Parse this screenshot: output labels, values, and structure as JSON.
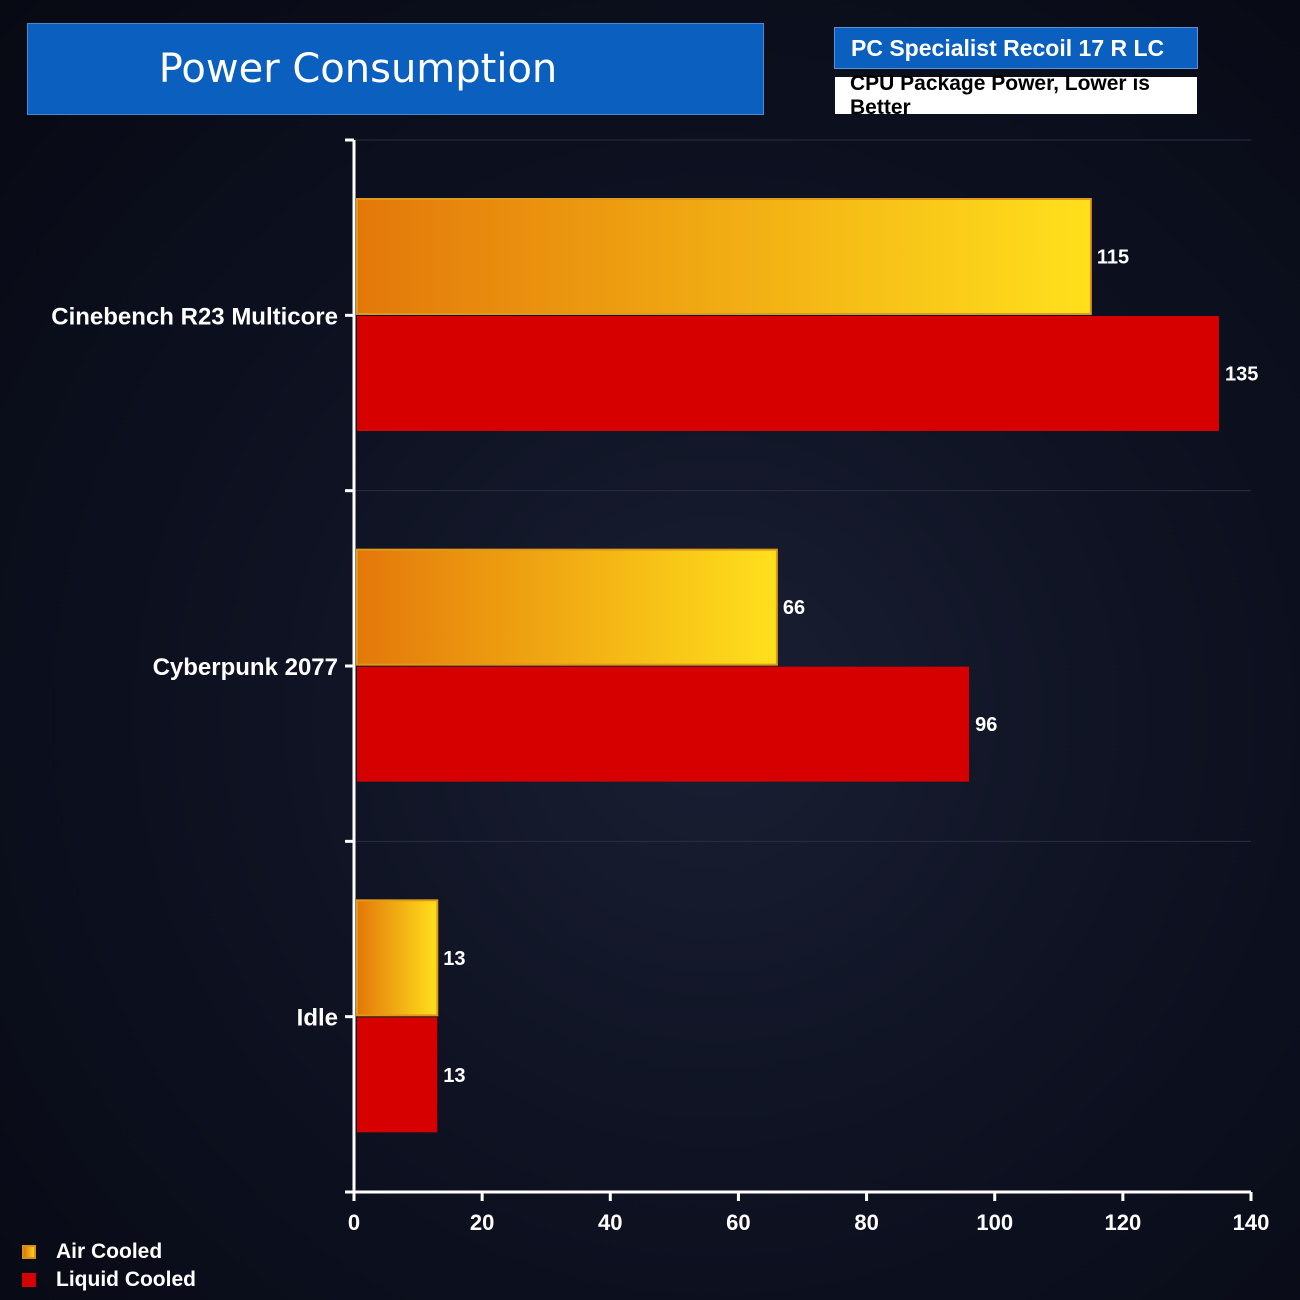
{
  "header": {
    "title": "Power Consumption",
    "subtitle": "PC Specialist Recoil 17 R LC",
    "note": "CPU Package Power, Lower is Better"
  },
  "chart_data": {
    "type": "bar",
    "orientation": "horizontal",
    "categories": [
      "Cinebench R23 Multicore",
      "Cyberpunk 2077",
      "Idle"
    ],
    "series": [
      {
        "name": "Air Cooled",
        "values": [
          115,
          66,
          13
        ],
        "color": "#f5a010"
      },
      {
        "name": "Liquid Cooled",
        "values": [
          135,
          96,
          13
        ],
        "color": "#d60000"
      }
    ],
    "xlim": [
      0,
      140
    ],
    "xticks": [
      0,
      20,
      40,
      60,
      80,
      100,
      120,
      140
    ],
    "legend": "bottom-left",
    "data_labels": true
  },
  "legend": {
    "items": [
      {
        "label": "Air Cooled"
      },
      {
        "label": "Liquid Cooled"
      }
    ]
  }
}
